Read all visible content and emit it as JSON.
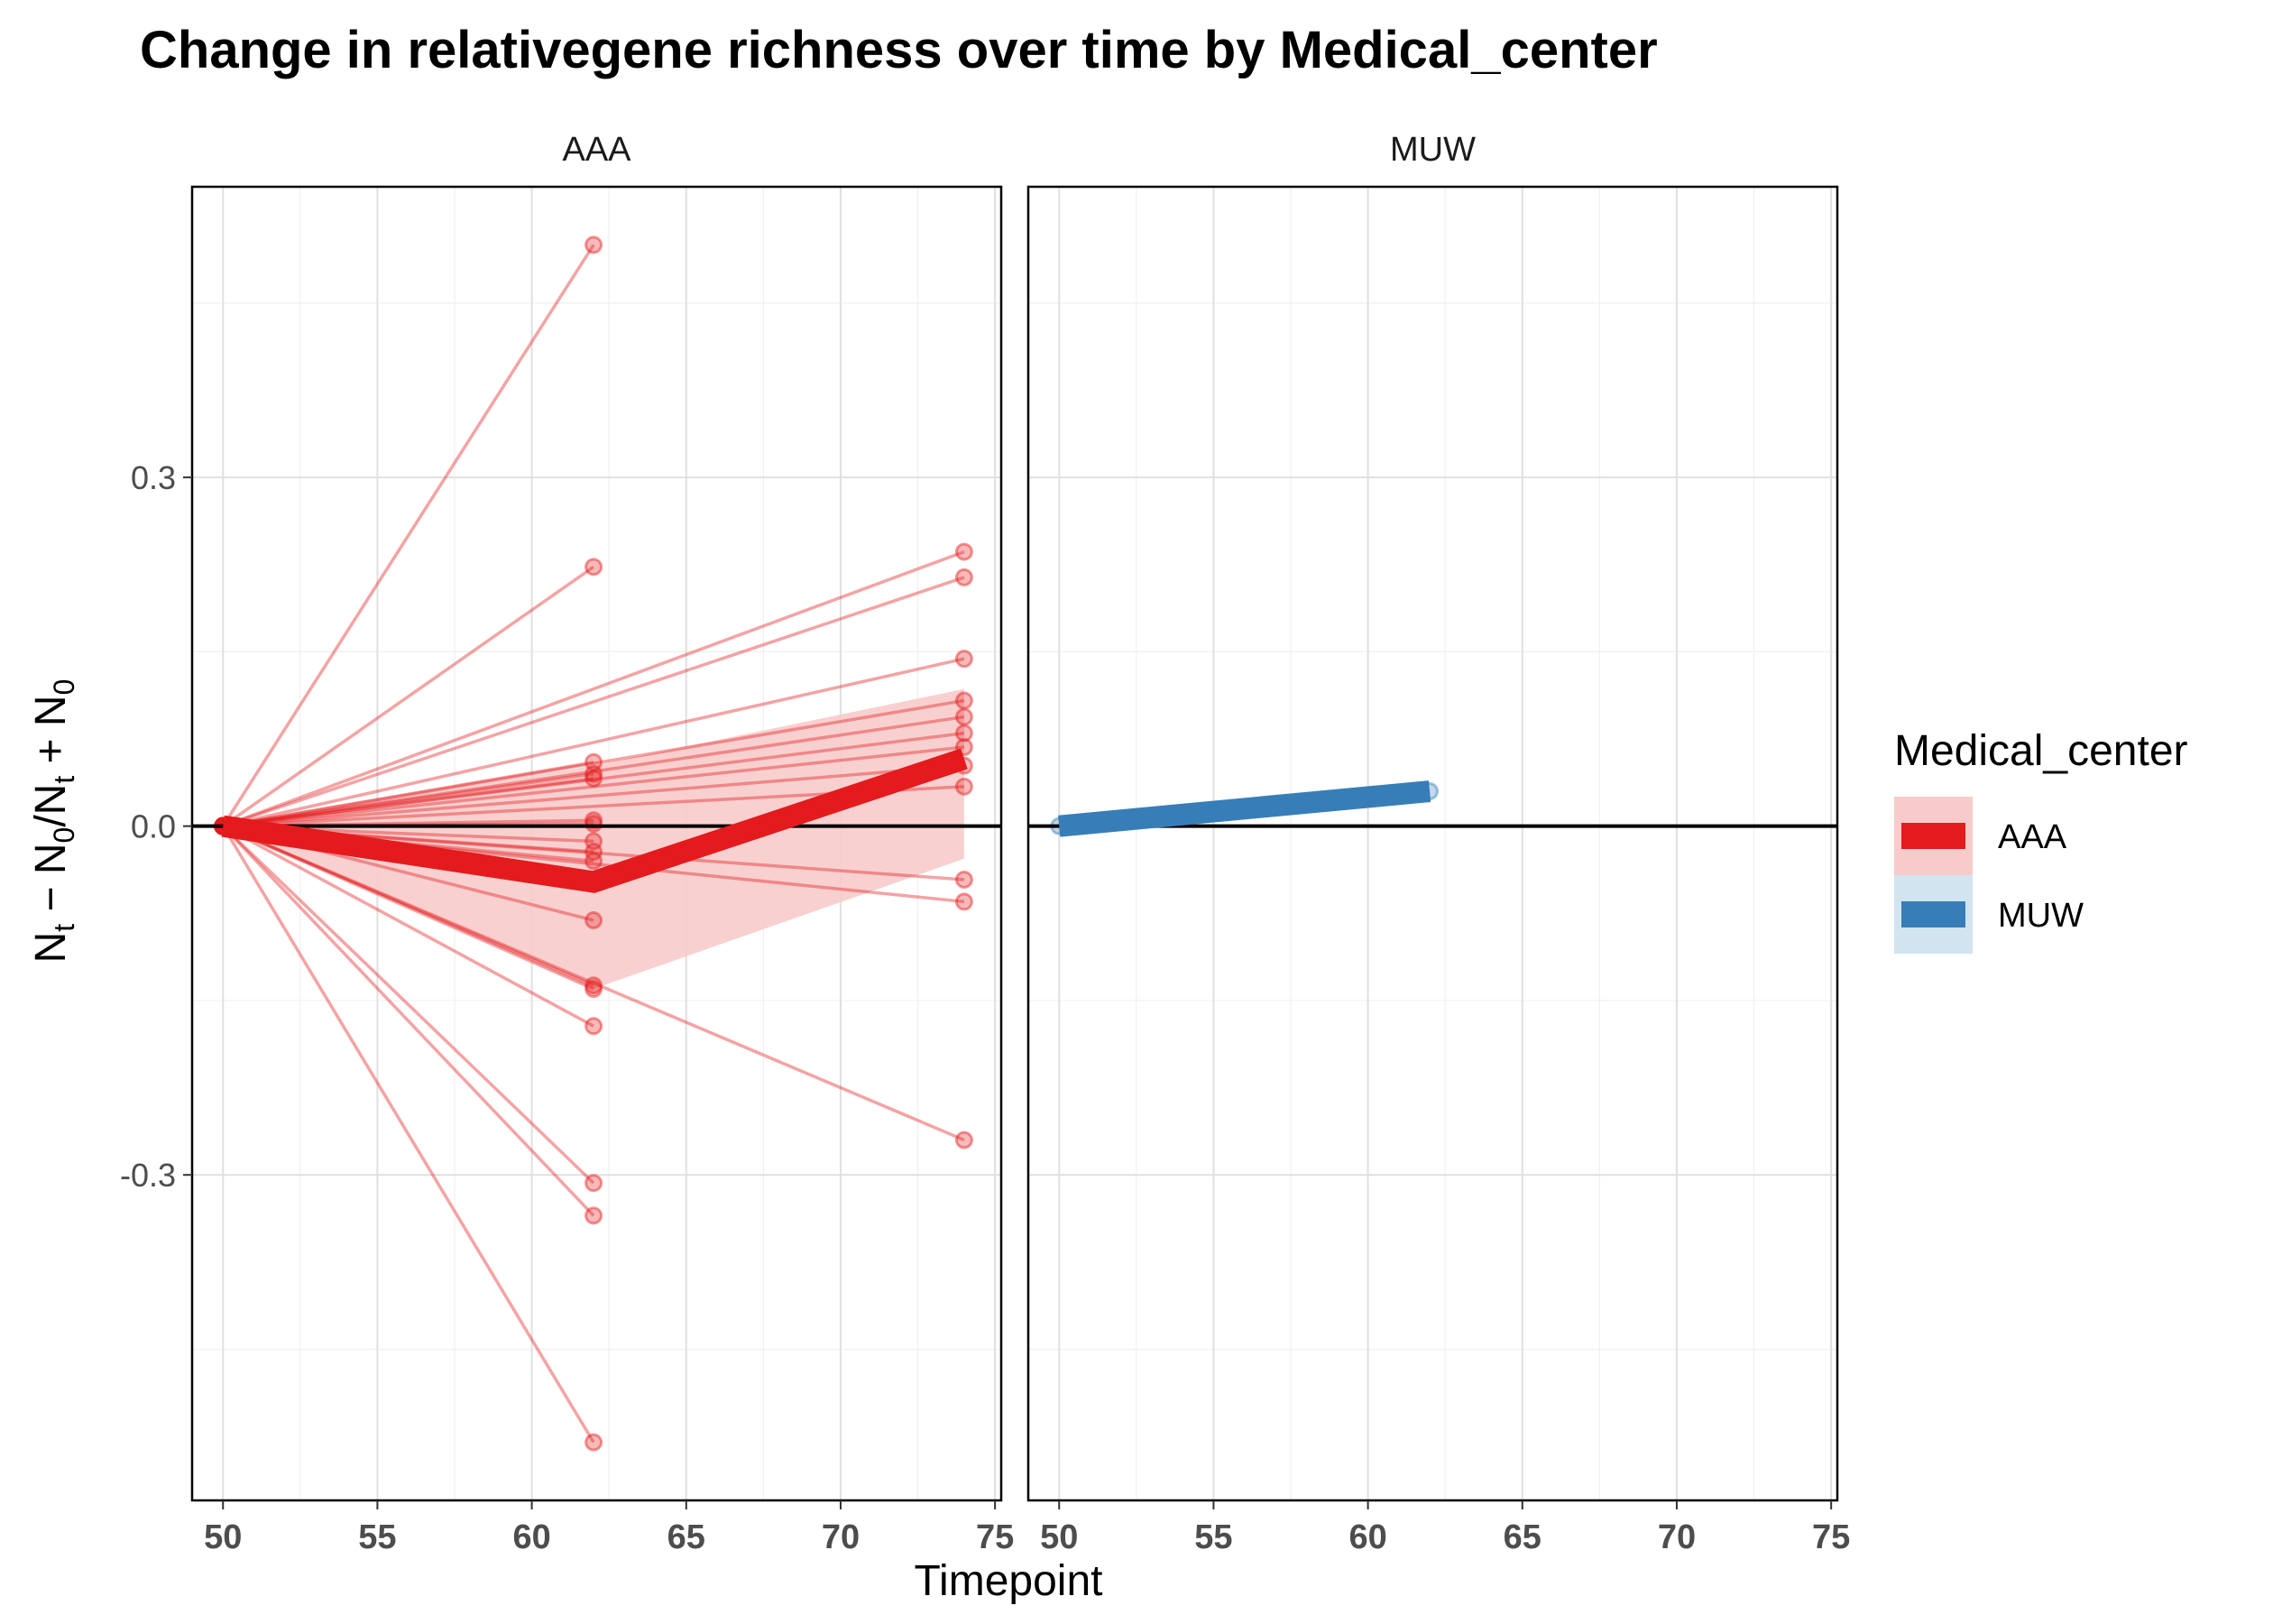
{
  "chart_data": {
    "type": "line",
    "title": "Change in relativegene richness over time by Medical_center",
    "xlabel": "Timepoint",
    "ylabel": "N_t − N_0 / N_t + N_0",
    "ylabel_parts": [
      "N",
      "t",
      " − N",
      "0",
      "/N",
      "t",
      " + N",
      "0"
    ],
    "xlim": [
      49,
      75.2
    ],
    "ylim": [
      -0.58,
      0.55
    ],
    "x_ticks": [
      50,
      55,
      60,
      65,
      70,
      75
    ],
    "x_tick_labels": [
      "50",
      "55",
      "60",
      "65",
      "70",
      "75"
    ],
    "y_ticks": [
      -0.3,
      0.0,
      0.3
    ],
    "y_tick_labels": [
      "-0.3",
      "0.0",
      "0.3"
    ],
    "y_minor_ticks": [
      -0.45,
      -0.15,
      0.15,
      0.45
    ],
    "x_minor_ticks": [
      52.5,
      57.5,
      62.5,
      67.5,
      72.5
    ],
    "hline": 0,
    "grid": true,
    "legend": {
      "title": "Medical_center",
      "position": "right",
      "entries": [
        "AAA",
        "MUW"
      ]
    },
    "colors": {
      "AAA": "#E41A1C",
      "MUW": "#377EB8",
      "AAA_ribbon": "#F8CBCB",
      "MUW_ribbon": "#D2E4F0"
    },
    "facets": [
      {
        "name": "AAA",
        "individual_series": [
          {
            "x": [
              50,
              62
            ],
            "y": [
              0,
              0.5
            ]
          },
          {
            "x": [
              50,
              62
            ],
            "y": [
              0,
              0.223
            ]
          },
          {
            "x": [
              50,
              62
            ],
            "y": [
              0,
              0.055
            ]
          },
          {
            "x": [
              50,
              62
            ],
            "y": [
              0,
              0.045
            ]
          },
          {
            "x": [
              50,
              62
            ],
            "y": [
              0,
              0.041
            ]
          },
          {
            "x": [
              50,
              62
            ],
            "y": [
              0,
              0.005
            ]
          },
          {
            "x": [
              50,
              62
            ],
            "y": [
              0,
              0.002
            ]
          },
          {
            "x": [
              50,
              62
            ],
            "y": [
              0,
              -0.013
            ]
          },
          {
            "x": [
              50,
              62
            ],
            "y": [
              0,
              -0.022
            ]
          },
          {
            "x": [
              50,
              62
            ],
            "y": [
              0,
              -0.03
            ]
          },
          {
            "x": [
              50,
              62
            ],
            "y": [
              0,
              -0.081
            ]
          },
          {
            "x": [
              50,
              62
            ],
            "y": [
              0,
              -0.137
            ]
          },
          {
            "x": [
              50,
              62
            ],
            "y": [
              0,
              -0.14
            ]
          },
          {
            "x": [
              50,
              62
            ],
            "y": [
              0,
              -0.172
            ]
          },
          {
            "x": [
              50,
              62
            ],
            "y": [
              0,
              -0.307
            ]
          },
          {
            "x": [
              50,
              62
            ],
            "y": [
              0,
              -0.335
            ]
          },
          {
            "x": [
              50,
              62
            ],
            "y": [
              0,
              -0.53
            ]
          },
          {
            "x": [
              50,
              74
            ],
            "y": [
              0,
              0.236
            ]
          },
          {
            "x": [
              50,
              74
            ],
            "y": [
              0,
              0.214
            ]
          },
          {
            "x": [
              50,
              74
            ],
            "y": [
              0,
              0.144
            ]
          },
          {
            "x": [
              50,
              74
            ],
            "y": [
              0,
              0.108
            ]
          },
          {
            "x": [
              50,
              74
            ],
            "y": [
              0,
              0.094
            ]
          },
          {
            "x": [
              50,
              74
            ],
            "y": [
              0,
              0.08
            ]
          },
          {
            "x": [
              50,
              74
            ],
            "y": [
              0,
              0.068
            ]
          },
          {
            "x": [
              50,
              74
            ],
            "y": [
              0,
              0.052
            ]
          },
          {
            "x": [
              50,
              74
            ],
            "y": [
              0,
              0.034
            ]
          },
          {
            "x": [
              50,
              74
            ],
            "y": [
              0,
              -0.046
            ]
          },
          {
            "x": [
              50,
              74
            ],
            "y": [
              0,
              -0.065
            ]
          },
          {
            "x": [
              50,
              74
            ],
            "y": [
              0,
              -0.27
            ]
          }
        ],
        "mean": {
          "x": [
            50,
            62,
            74
          ],
          "y": [
            0,
            -0.048,
            0.058
          ]
        },
        "ribbon": {
          "x": [
            50,
            62,
            74
          ],
          "ymin": [
            0,
            -0.14,
            -0.028
          ],
          "ymax": [
            0,
            0.052,
            0.118
          ]
        }
      },
      {
        "name": "MUW",
        "individual_series": [
          {
            "x": [
              50,
              62
            ],
            "y": [
              0,
              0.03
            ]
          }
        ],
        "mean": {
          "x": [
            50,
            62
          ],
          "y": [
            0,
            0.03
          ]
        },
        "ribbon": {
          "x": [
            50,
            62
          ],
          "ymin": [
            0,
            0.03
          ],
          "ymax": [
            0,
            0.03
          ]
        }
      }
    ]
  }
}
